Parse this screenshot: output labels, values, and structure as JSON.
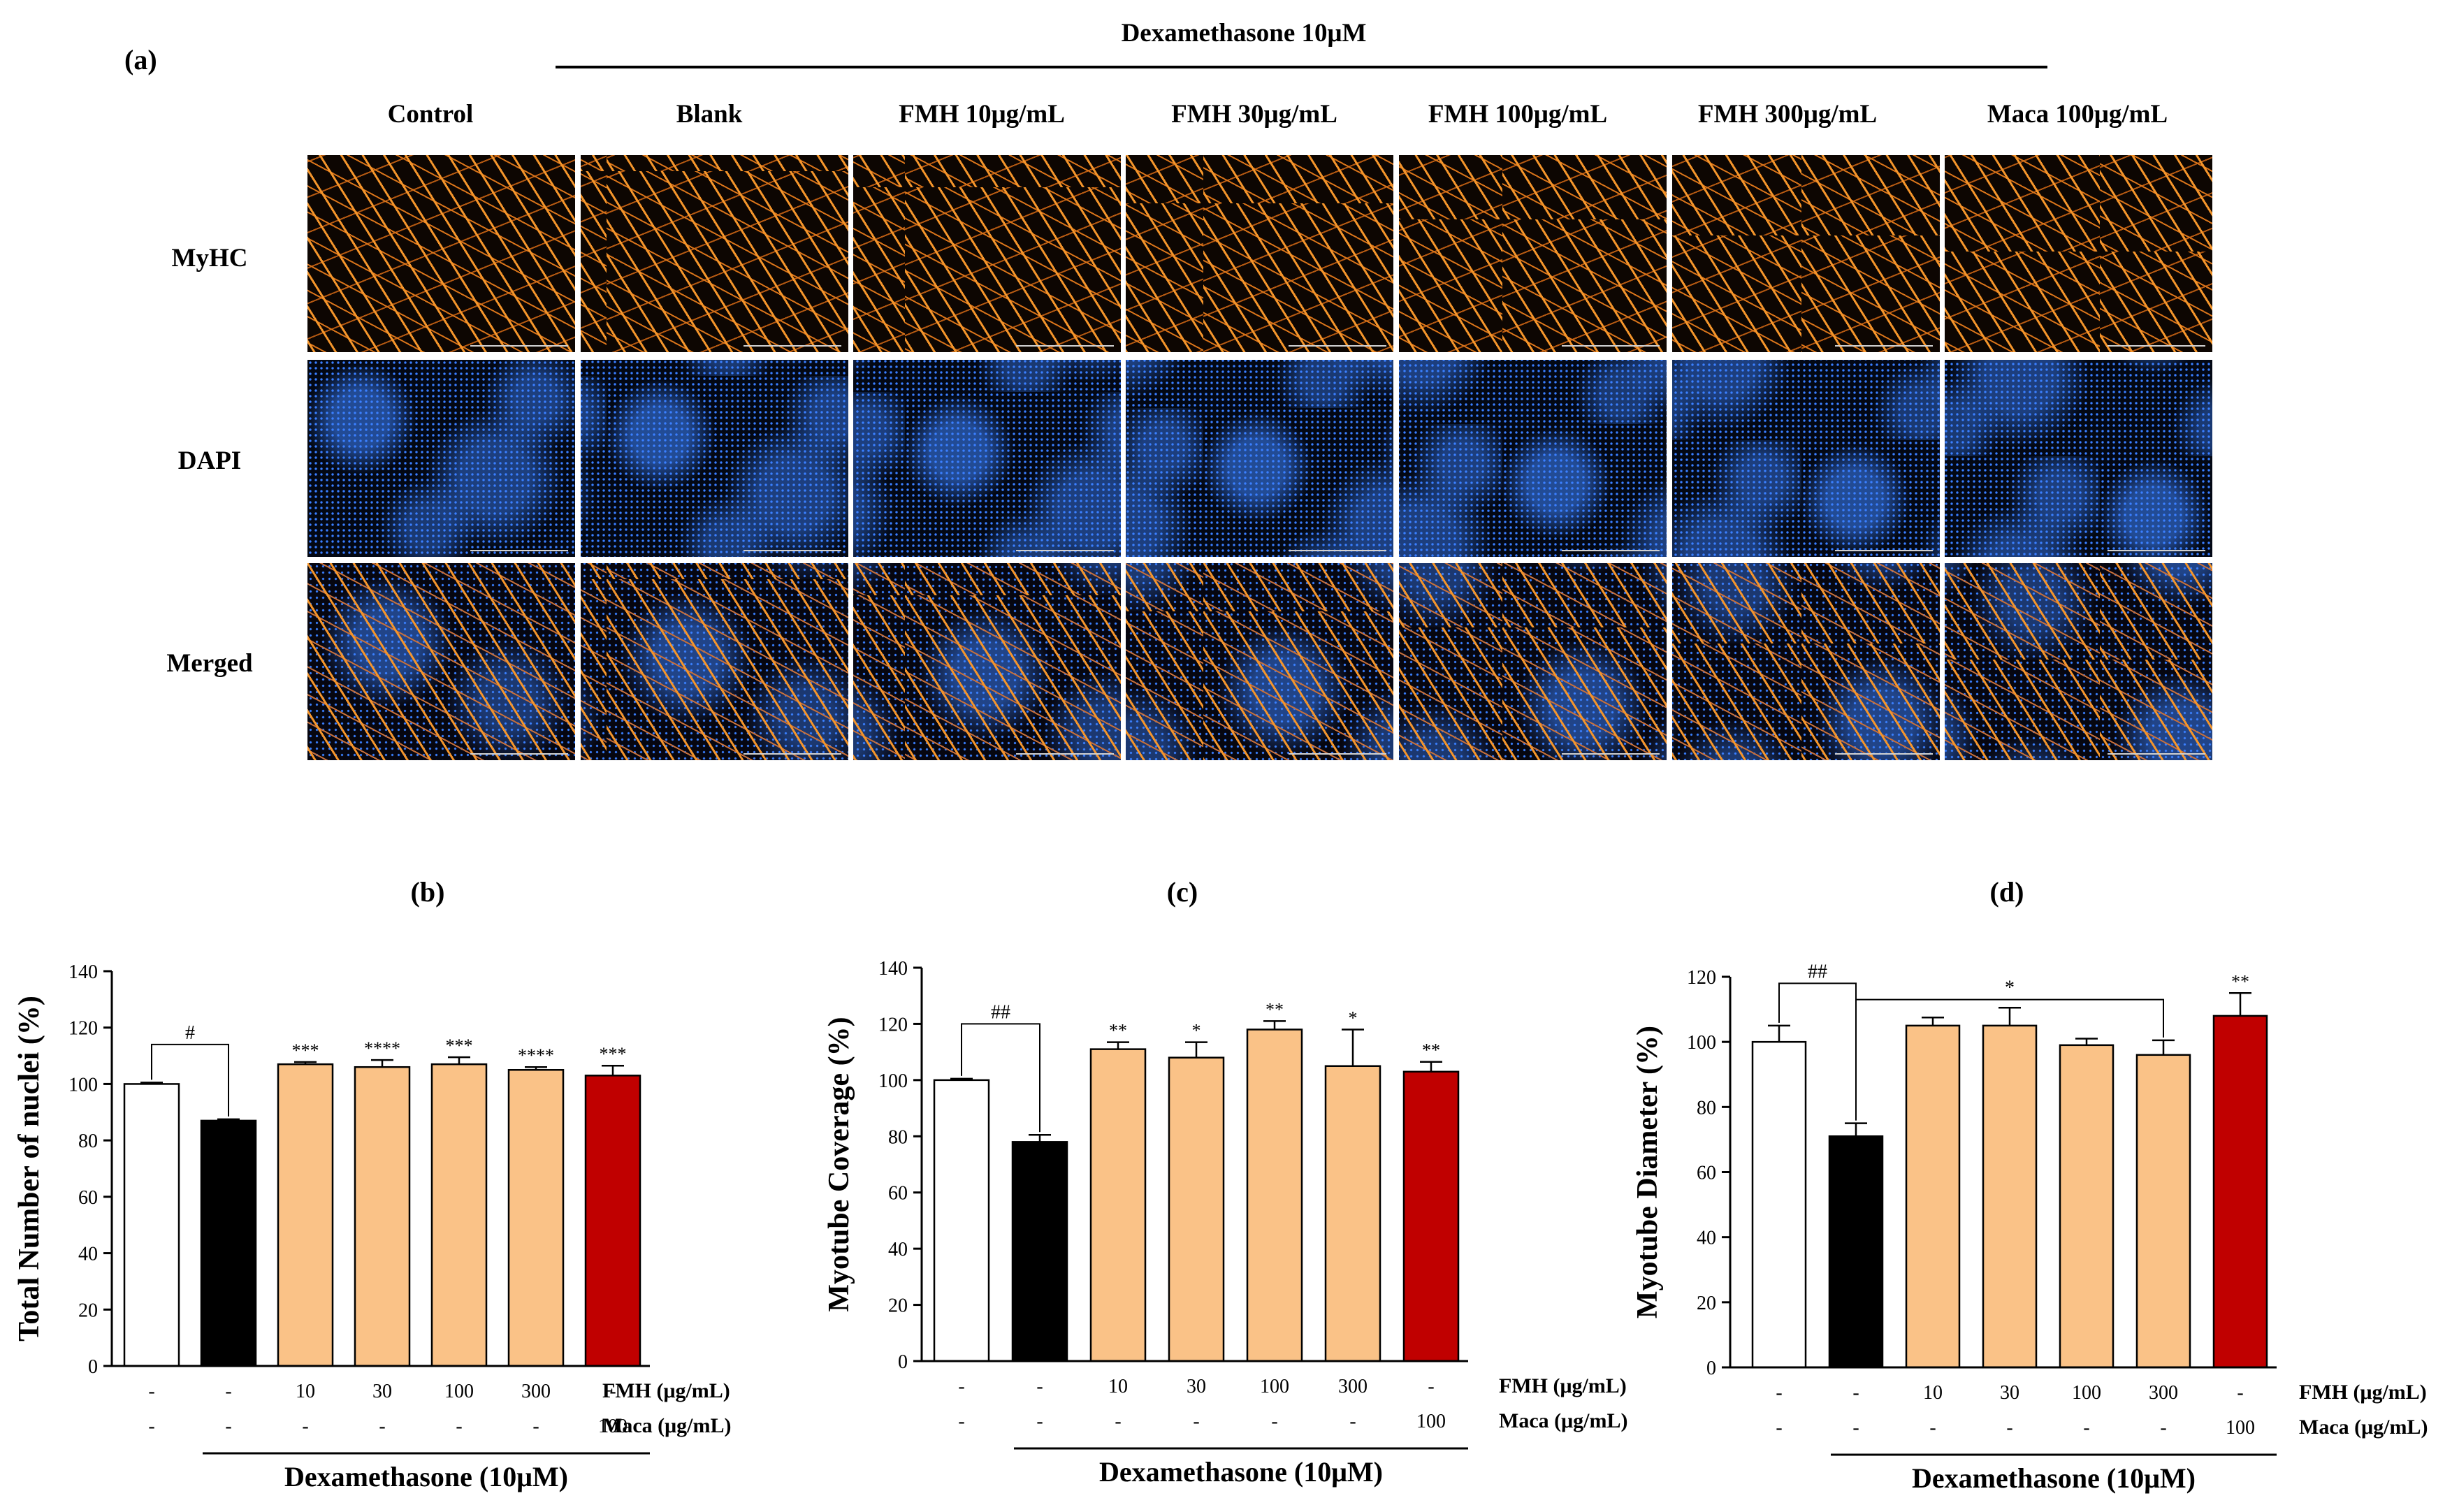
{
  "panel_a": {
    "letter": "(a)",
    "treatment_header": "Dexamethasone 10μM",
    "columns": [
      "Control",
      "Blank",
      "FMH 10μg/mL",
      "FMH 30μg/mL",
      "FMH 100μg/mL",
      "FMH 300μg/mL",
      "Maca 100μg/mL"
    ],
    "rows": [
      "MyHC",
      "DAPI",
      "Merged"
    ]
  },
  "colors": {
    "control": "#ffffff",
    "blank": "#000000",
    "fmh": "#fac287",
    "maca": "#c00000"
  },
  "chart_data": [
    {
      "panel": "(b)",
      "type": "bar",
      "categories": [
        "Control",
        "Blank",
        "FMH 10",
        "FMH 30",
        "FMH 100",
        "FMH 300",
        "Maca 100"
      ],
      "values": [
        100,
        87,
        107,
        106,
        107,
        105,
        103
      ],
      "errors": [
        0.5,
        0.5,
        0.8,
        2.5,
        2.5,
        1.0,
        3.5
      ],
      "stars": [
        "",
        "",
        "***",
        "****",
        "***",
        "****",
        "***"
      ],
      "ylabel": "Total Number of nuclei (%)",
      "ylim": [
        0,
        140
      ],
      "yticks": [
        0,
        20,
        40,
        60,
        80,
        100,
        120,
        140
      ],
      "fmh_row": [
        "-",
        "-",
        "10",
        "30",
        "100",
        "300",
        "-"
      ],
      "maca_row": [
        "-",
        "-",
        "-",
        "-",
        "-",
        "-",
        "100"
      ],
      "fmh_label": "FMH (μg/mL)",
      "maca_label": "Maca (μg/mL)",
      "xlabel": "Dexamethasone (10μM)",
      "brackets": [
        {
          "from": 0,
          "to": 1,
          "label": "#",
          "y": 114
        }
      ]
    },
    {
      "panel": "(c)",
      "type": "bar",
      "categories": [
        "Control",
        "Blank",
        "FMH 10",
        "FMH 30",
        "FMH 100",
        "FMH 300",
        "Maca 100"
      ],
      "values": [
        100,
        78,
        111,
        108,
        118,
        105,
        103
      ],
      "errors": [
        0.5,
        2.5,
        2.5,
        5.5,
        3.0,
        13.0,
        3.5
      ],
      "stars": [
        "",
        "",
        "**",
        "*",
        "**",
        "*",
        "**"
      ],
      "ylabel": "Myotube Coverage (%)",
      "ylim": [
        0,
        140
      ],
      "yticks": [
        0,
        20,
        40,
        60,
        80,
        100,
        120,
        140
      ],
      "fmh_row": [
        "-",
        "-",
        "10",
        "30",
        "100",
        "300",
        "-"
      ],
      "maca_row": [
        "-",
        "-",
        "-",
        "-",
        "-",
        "-",
        "100"
      ],
      "fmh_label": "FMH (μg/mL)",
      "maca_label": "Maca (μg/mL)",
      "xlabel": "Dexamethasone (10μM)",
      "brackets": [
        {
          "from": 0,
          "to": 1,
          "label": "##",
          "y": 120
        }
      ]
    },
    {
      "panel": "(d)",
      "type": "bar",
      "categories": [
        "Control",
        "Blank",
        "FMH 10",
        "FMH 30",
        "FMH 100",
        "FMH 300",
        "Maca 100"
      ],
      "values": [
        100,
        71,
        105,
        105,
        99,
        96,
        108
      ],
      "errors": [
        5.0,
        4.0,
        2.5,
        5.5,
        2.0,
        4.5,
        7.0
      ],
      "stars": [
        "",
        "",
        "",
        "",
        "",
        "",
        "**"
      ],
      "ylabel": "Myotube Diameter (%)",
      "ylim": [
        0,
        120
      ],
      "yticks": [
        0,
        20,
        40,
        60,
        80,
        100,
        120
      ],
      "fmh_row": [
        "-",
        "-",
        "10",
        "30",
        "100",
        "300",
        "-"
      ],
      "maca_row": [
        "-",
        "-",
        "-",
        "-",
        "-",
        "-",
        "100"
      ],
      "fmh_label": "FMH (μg/mL)",
      "maca_label": "Maca (μg/mL)",
      "xlabel": "Dexamethasone (10μM)",
      "brackets": [
        {
          "from": 0,
          "to": 1,
          "label": "##",
          "y": 118
        },
        {
          "from": 1,
          "to": 5,
          "label": "*",
          "y": 113
        }
      ]
    }
  ]
}
